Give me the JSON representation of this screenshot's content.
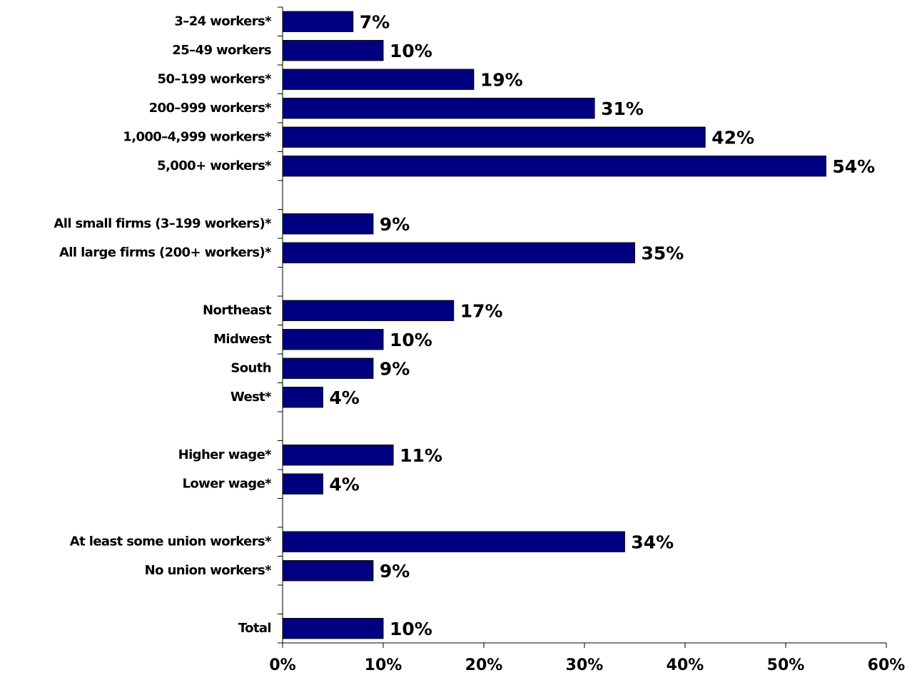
{
  "chart_data": {
    "type": "hbar",
    "categories": [
      "3–24 workers*",
      "25–49 workers",
      "50–199 workers*",
      "200–999 workers*",
      "1,000–4,999 workers*",
      "5,000+ workers*",
      null,
      "All small firms (3–199 workers)*",
      "All large firms (200+ workers)*",
      null,
      "Northeast",
      "Midwest",
      "South",
      "West*",
      null,
      "Higher wage*",
      "Lower wage*",
      null,
      "At least some union workers*",
      "No union workers*",
      null,
      "Total"
    ],
    "values": [
      7,
      10,
      19,
      31,
      42,
      54,
      null,
      9,
      35,
      null,
      17,
      10,
      9,
      4,
      null,
      11,
      4,
      null,
      34,
      9,
      null,
      10
    ],
    "value_labels": [
      "7%",
      "10%",
      "19%",
      "31%",
      "42%",
      "54%",
      null,
      "9%",
      "35%",
      null,
      "17%",
      "10%",
      "9%",
      "4%",
      null,
      "11%",
      "4%",
      null,
      "34%",
      "9%",
      null,
      "10%"
    ],
    "color": "#000080",
    "xlim": [
      0,
      60
    ],
    "xticks": [
      {
        "value": 0,
        "label": "0%"
      },
      {
        "value": 10,
        "label": "10%"
      },
      {
        "value": 20,
        "label": "20%"
      },
      {
        "value": 30,
        "label": "30%"
      },
      {
        "value": 40,
        "label": "40%"
      },
      {
        "value": 50,
        "label": "50%"
      },
      {
        "value": 60,
        "label": "60%"
      }
    ],
    "grid": false
  }
}
